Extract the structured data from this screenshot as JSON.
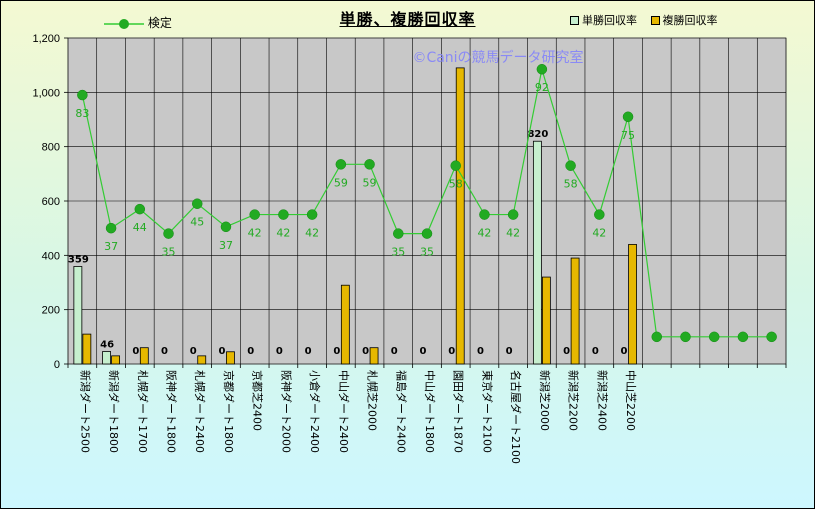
{
  "chart_data": {
    "type": "bar",
    "title": "単勝、複勝回収率",
    "watermark": "©Caniの競馬データ研究室",
    "categories": [
      "新潟ダート2500",
      "新潟ダート1800",
      "札幌ダート1700",
      "阪神ダート1800",
      "札幌ダート2400",
      "京都ダート1800",
      "京都芝2400",
      "阪神ダート2000",
      "小倉ダート2400",
      "中山ダート2400",
      "札幌芝2000",
      "福島ダート2400",
      "中山ダート1800",
      "園田ダート1870",
      "東京ダート2100",
      "名古屋ダート2100",
      "新潟芝2000",
      "新潟芝2200",
      "新潟芝2400",
      "中山芝2200",
      "",
      "",
      "",
      "",
      ""
    ],
    "ylim": [
      0,
      1200
    ],
    "yticks": [
      "0",
      "200",
      "400",
      "600",
      "800",
      "1,000",
      "1,200"
    ],
    "grid": true,
    "series": [
      {
        "name": "単勝回収率",
        "color": "#c6efce",
        "type": "bar",
        "values": [
          359,
          46,
          0,
          0,
          0,
          0,
          0,
          0,
          0,
          0,
          0,
          0,
          0,
          0,
          0,
          0,
          820,
          0,
          0,
          0,
          null,
          null,
          null,
          null,
          null
        ],
        "labels": [
          "359",
          "46",
          "0",
          "0",
          "0",
          "0",
          "0",
          "0",
          "0",
          "0",
          "0",
          "0",
          "0",
          "0",
          "0",
          "0",
          "820",
          "0",
          "0",
          "0",
          "",
          "",
          "",
          "",
          ""
        ]
      },
      {
        "name": "複勝回収率",
        "color": "#e6b800",
        "type": "bar",
        "values": [
          110,
          30,
          60,
          0,
          30,
          45,
          0,
          0,
          0,
          290,
          60,
          0,
          0,
          1090,
          0,
          0,
          320,
          390,
          0,
          440,
          null,
          null,
          null,
          null,
          null
        ]
      },
      {
        "name": "検定",
        "color": "#33cc33",
        "type": "line",
        "values": [
          990,
          500,
          570,
          480,
          590,
          505,
          550,
          550,
          550,
          735,
          735,
          480,
          480,
          730,
          550,
          550,
          1085,
          730,
          550,
          910,
          100,
          100,
          100,
          100,
          100
        ],
        "labels": [
          "83",
          "37",
          "44",
          "35",
          "45",
          "37",
          "42",
          "42",
          "42",
          "59",
          "59",
          "35",
          "35",
          "58",
          "42",
          "42",
          "92",
          "58",
          "42",
          "75",
          "",
          "",
          "",
          "",
          ""
        ]
      }
    ]
  },
  "legend": {
    "line_label": "検定",
    "bar1_label": "単勝回収率",
    "bar2_label": "複勝回収率"
  }
}
